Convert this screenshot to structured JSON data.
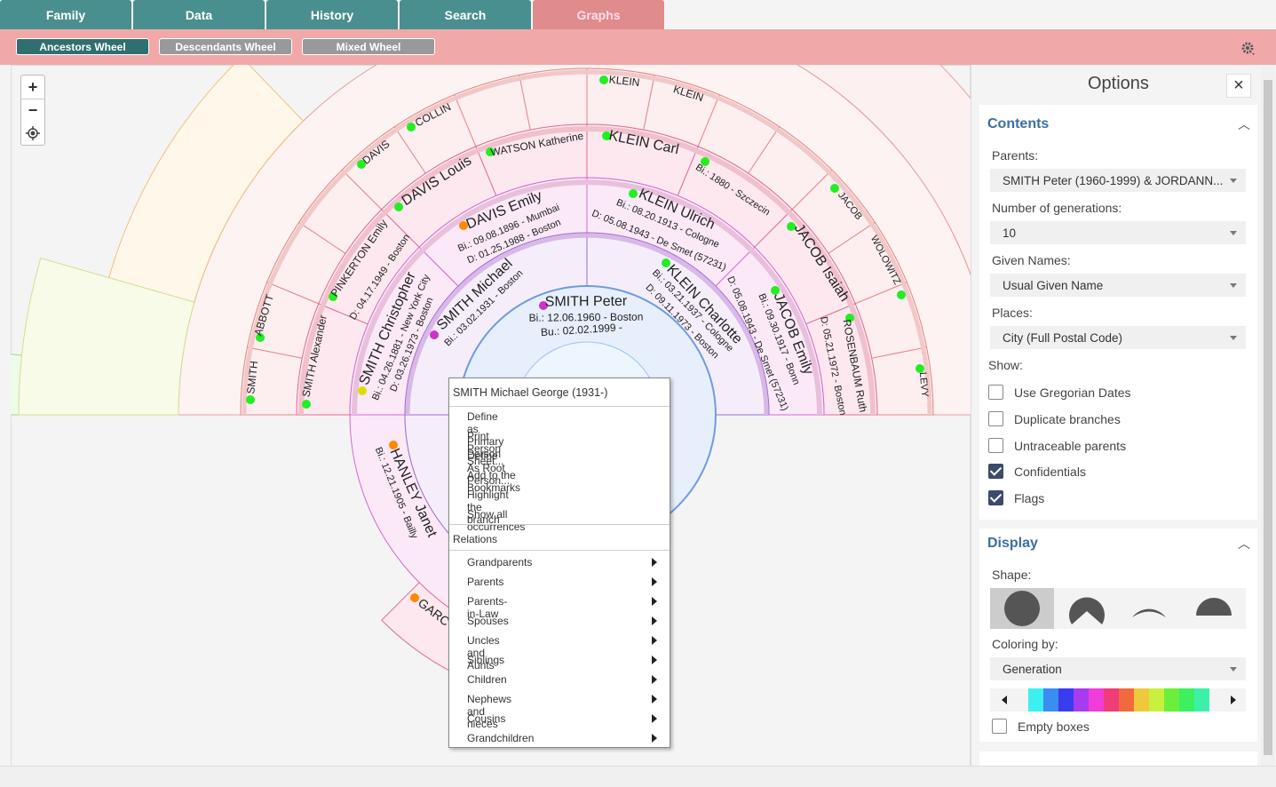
{
  "tabs": [
    "Family",
    "Data",
    "History",
    "Search",
    "Graphs"
  ],
  "subtabs": [
    "Ancestors Wheel",
    "Descendants Wheel",
    "Mixed Wheel"
  ],
  "zoom": [
    "+",
    "−"
  ],
  "wheel": {
    "labels": [
      "SMITH Peter",
      "Bi.: 12.06.1960 - Boston",
      "Bu.: 02.02.1999 -",
      "SMITH Michael",
      "Bi.: 03.02.1931 - Boston",
      "KLEIN Charlotte",
      "Bi.: 03.21.1937 - Cologne",
      "D: 09.11.1973 - Boston",
      "DAVIS Emily",
      "Bi.: 09.08.1896 - Mumbai",
      "D: 01.25.1988 - Boston",
      "SMITH Christopher",
      "Bi.: 04.26.1881 - New York City",
      "D: 03.26.1973 - Boston",
      "KLEIN Ulrich",
      "Bi.: 08.20.1913 - Cologne",
      "D: 05.08.1943 - De Smet (57231)",
      "JACOB Emily",
      "Bi.: 09.30.1917 - Bonn",
      "D: 05.08.1943 - De Smet (57231)",
      "DAVIS Louis",
      "WATSON Katherine",
      "KLEIN Carl",
      "Bi.: 1880 - Szczecin",
      "JACOB Isaiah",
      "D: 05.21.1972 - Boston",
      "ROSENBAUM Ruth",
      "PINKERTON Emily",
      "D: 04.17.1949 - Boston",
      "SMITH Alexander",
      "HANLEY Janet",
      "Bi.: 12.21.1905 - Bailly",
      "ABBOTT",
      "SMITH",
      "DAVIS",
      "COLLIN",
      "KLEIN",
      "KLEIN",
      "JACOB",
      "WOLOWITZ",
      "LEVY",
      "GARC"
    ]
  },
  "context_menu": {
    "title": "SMITH Michael George (1931-)",
    "items": [
      "Define as Primary Person",
      "Print Person Sheet...",
      "Define As Root Person...",
      "Add to the Bookmarks",
      "Highlight the branch",
      "Show all occurrences"
    ],
    "section": "Relations",
    "relations": [
      "Grandparents",
      "Parents",
      "Parents-in-Law",
      "Spouses",
      "Uncles and Aunts",
      "Siblings",
      "Children",
      "Nephews and nieces",
      "Cousins",
      "Grandchildren"
    ]
  },
  "options": {
    "title": "Options",
    "contents": {
      "title": "Contents",
      "fields": [
        {
          "label": "Parents:",
          "value": "SMITH Peter (1960-1999) & JORDANN..."
        },
        {
          "label": "Number of generations:",
          "value": "10"
        },
        {
          "label": "Given Names:",
          "value": "Usual Given Name"
        },
        {
          "label": "Places:",
          "value": "City (Full Postal Code)"
        }
      ],
      "show_label": "Show:",
      "checkboxes": [
        {
          "label": "Use Gregorian Dates",
          "checked": false
        },
        {
          "label": "Duplicate branches",
          "checked": false
        },
        {
          "label": "Untraceable parents",
          "checked": false
        },
        {
          "label": "Confidentials",
          "checked": true
        },
        {
          "label": "Flags",
          "checked": true
        }
      ]
    },
    "display": {
      "title": "Display",
      "shape_label": "Shape:",
      "coloring_label": "Coloring by:",
      "coloring_value": "Generation",
      "palette": [
        "#3df0f0",
        "#3a8ef0",
        "#3b3bf0",
        "#a63cf0",
        "#f03cd8",
        "#f03c78",
        "#f06a3c",
        "#f0c83c",
        "#c8f03c",
        "#6af03c",
        "#3cf060",
        "#3cf0a8"
      ],
      "empty_boxes": {
        "label": "Empty boxes",
        "checked": false
      }
    }
  }
}
